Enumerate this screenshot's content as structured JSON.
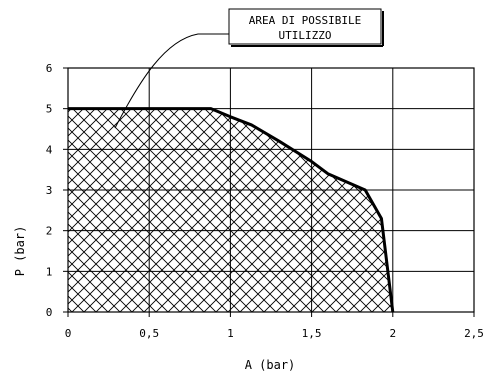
{
  "chart_data": {
    "type": "area",
    "xlabel": "A (bar)",
    "ylabel": "P (bar)",
    "xlim": [
      0,
      2.5
    ],
    "ylim": [
      0,
      6
    ],
    "x_ticks": [
      "0",
      "0,5",
      "1",
      "1,5",
      "2",
      "2,5"
    ],
    "y_ticks": [
      "0",
      "1",
      "2",
      "3",
      "4",
      "5",
      "6"
    ],
    "grid": true,
    "annotation": {
      "lines": [
        "AREA DI POSSIBILE",
        "UTILIZZO"
      ]
    },
    "series": [
      {
        "points": [
          {
            "x": 0,
            "y": 5
          },
          {
            "x": 0.88,
            "y": 5
          },
          {
            "x": 1,
            "y": 4.8
          },
          {
            "x": 1.13,
            "y": 4.6
          },
          {
            "x": 1.3,
            "y": 4.2
          },
          {
            "x": 1.5,
            "y": 3.7
          },
          {
            "x": 1.6,
            "y": 3.4
          },
          {
            "x": 1.83,
            "y": 3.0
          },
          {
            "x": 1.93,
            "y": 2.3
          },
          {
            "x": 2.0,
            "y": 0
          }
        ],
        "fill": "crosshatch"
      }
    ],
    "colors": {
      "line": "#000000",
      "hatch": "#000000",
      "background": "#ffffff"
    }
  }
}
